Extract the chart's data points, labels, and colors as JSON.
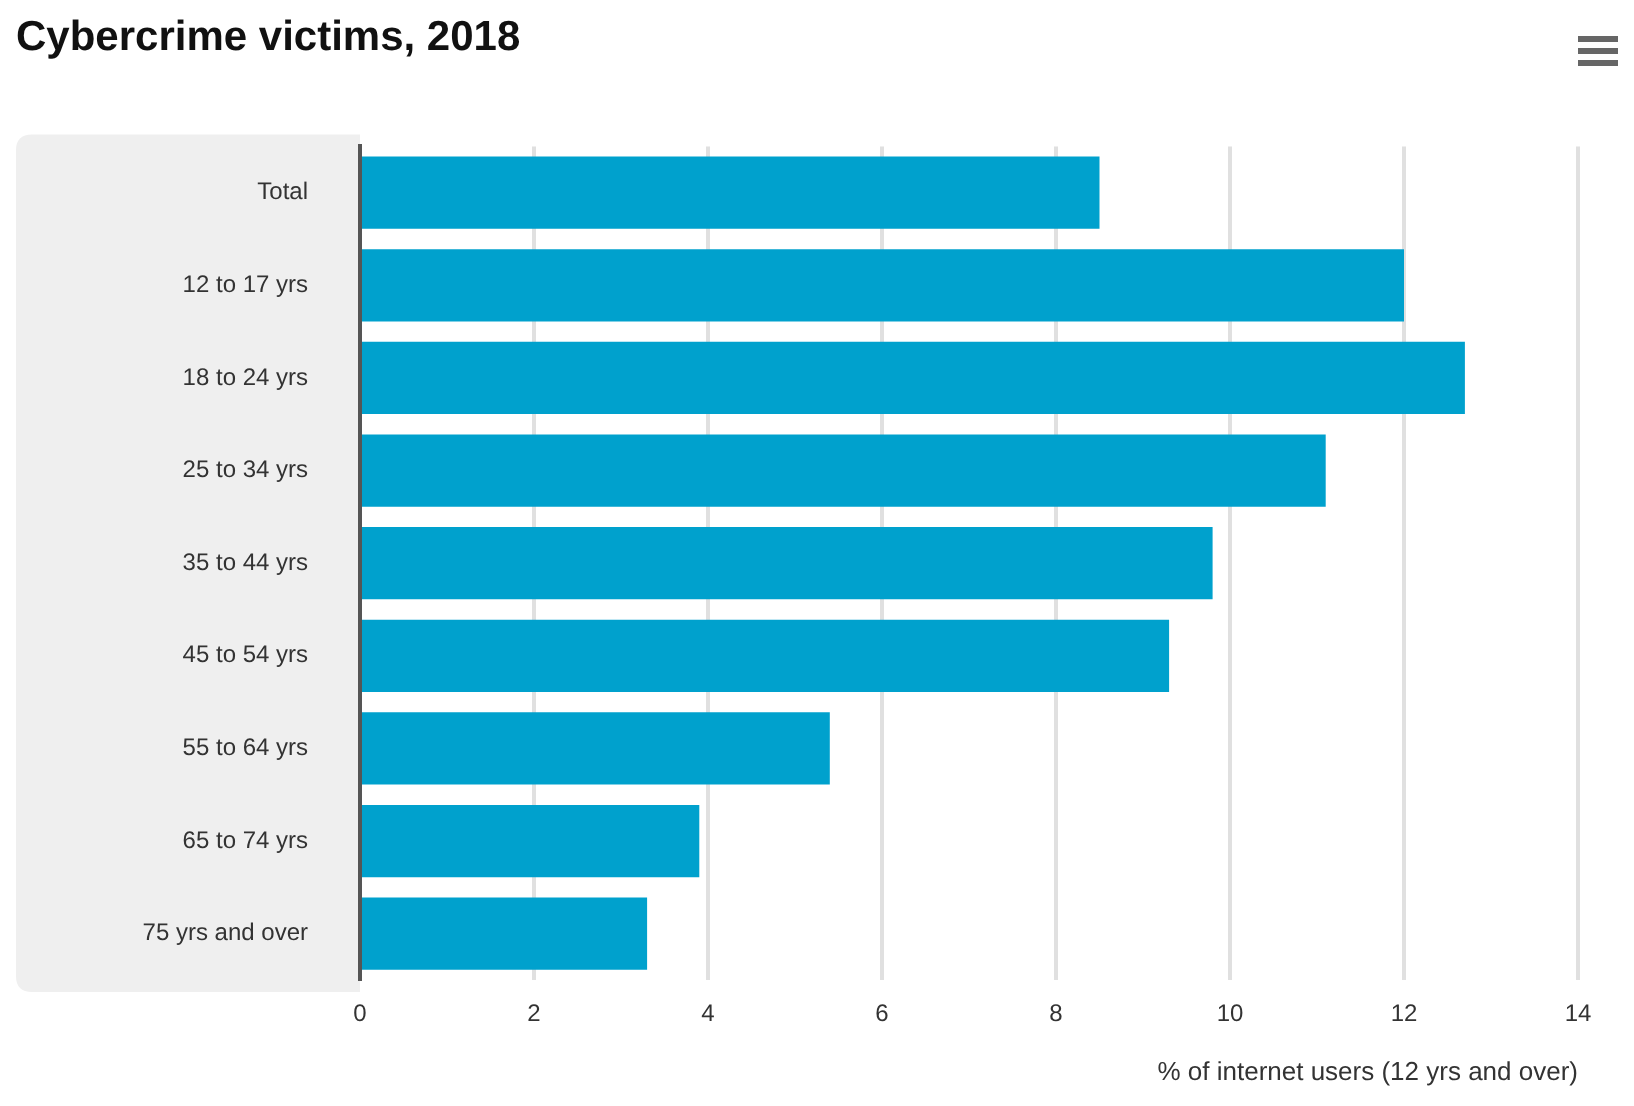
{
  "chart_data": {
    "type": "bar",
    "orientation": "horizontal",
    "title": "Cybercrime victims, 2018",
    "xlabel": "% of internet users (12 yrs and over)",
    "categories": [
      "Total",
      "12 to 17 yrs",
      "18 to 24 yrs",
      "25 to 34 yrs",
      "35 to 44 yrs",
      "45 to 54 yrs",
      "55 to 64 yrs",
      "65 to 74 yrs",
      "75 yrs and over"
    ],
    "values": [
      8.5,
      12.0,
      12.7,
      11.1,
      9.8,
      9.3,
      5.4,
      3.9,
      3.3
    ],
    "color": "#00a1cd",
    "xlim": [
      0,
      14
    ],
    "xticks": [
      0,
      2,
      4,
      6,
      8,
      10,
      12,
      14
    ],
    "grid": "x",
    "legend": false
  }
}
